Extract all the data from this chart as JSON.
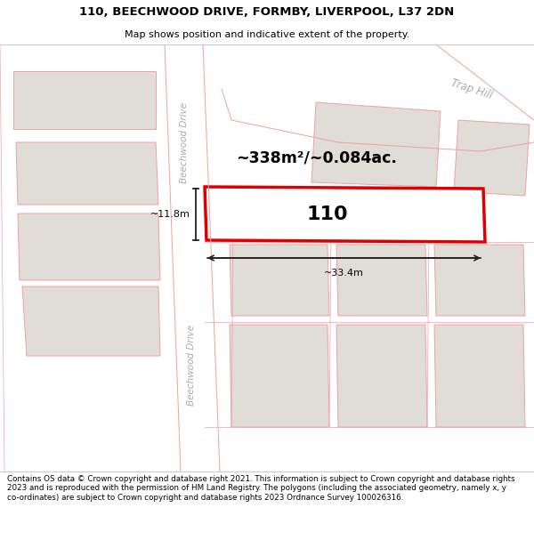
{
  "title": "110, BEECHWOOD DRIVE, FORMBY, LIVERPOOL, L37 2DN",
  "subtitle": "Map shows position and indicative extent of the property.",
  "footer": "Contains OS data © Crown copyright and database right 2021. This information is subject to Crown copyright and database rights 2023 and is reproduced with the permission of HM Land Registry. The polygons (including the associated geometry, namely x, y co-ordinates) are subject to Crown copyright and database rights 2023 Ordnance Survey 100026316.",
  "area_text": "~338m²/~0.084ac.",
  "house_number": "110",
  "dim_width": "~33.4m",
  "dim_height": "~11.8m",
  "road_color": "#ffffff",
  "highlight_plot_color": "#ffffff",
  "highlight_plot_edge": "#dd0000",
  "neighbor_plot_color": "#e0dcd6",
  "neighbor_plot_edge": "#f0a0a0",
  "road_line_color": "#f0a0a0",
  "title_bg": "#ffffff",
  "footer_bg": "#ffffff",
  "map_bg": "#f7f5f2",
  "road_label_color": "#aaaaaa",
  "dim_line_color": "#222222",
  "trap_hill_color": "#aaaaaa"
}
